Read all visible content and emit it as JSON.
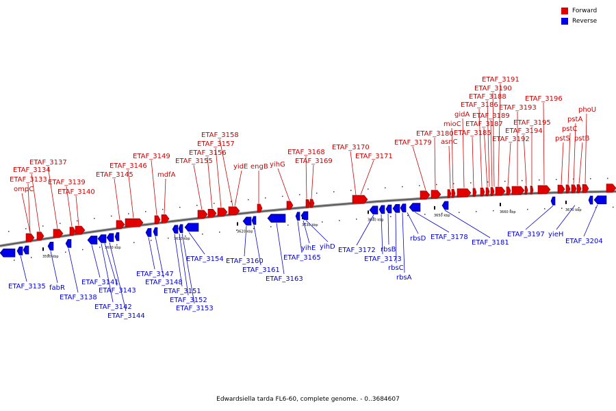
{
  "legend": {
    "forward_label": "Forward",
    "reverse_label": "Reverse",
    "forward_color": "#e00000",
    "reverse_color": "#0000e8"
  },
  "caption": "Edwardsiella tarda FL6-60, complete genome. - 0..3684607",
  "scale_labels": [
    "3590 kbp",
    "3600 kbp",
    "3610 kbp",
    "3620 kbp",
    "3630 kbp",
    "3640 kbp",
    "3650 kbp",
    "3660 kbp",
    "3670 kbp"
  ],
  "forward_genes": [
    "ompC",
    "ETAF_3133",
    "ETAF_3134",
    "ETAF_3137",
    "ETAF_3139",
    "ETAF_3140",
    "ETAF_3145",
    "ETAF_3146",
    "mdfA",
    "ETAF_3149",
    "ETAF_3155",
    "ETAF_3156",
    "ETAF_3157",
    "ETAF_3158",
    "yidE",
    "engB",
    "yihG",
    "ETAF_3168",
    "ETAF_3169",
    "ETAF_3170",
    "ETAF_3171",
    "ETAF_3179",
    "ETAF_3180",
    "asnC",
    "mioC",
    "gidA",
    "ETAF_3185",
    "ETAF_3186",
    "ETAF_3187",
    "ETAF_3188",
    "ETAF_3189",
    "ETAF_3190",
    "ETAF_3191",
    "ETAF_3192",
    "ETAF_3193",
    "ETAF_3194",
    "ETAF_3195",
    "ETAF_3196",
    "pstS",
    "pstC",
    "pstA",
    "pstB",
    "phoU"
  ],
  "reverse_genes": [
    "ETAF_3135",
    "fabR",
    "ETAF_3138",
    "ETAF_3141",
    "ETAF_3142",
    "ETAF_3143",
    "ETAF_3144",
    "ETAF_3147",
    "ETAF_3148",
    "ETAF_3151",
    "ETAF_3152",
    "ETAF_3153",
    "ETAF_3154",
    "ETAF_3160",
    "ETAF_3161",
    "ETAF_3163",
    "ETAF_3165",
    "yihE",
    "yihD",
    "ETAF_3172",
    "ETAF_3173",
    "rbsB",
    "rbsC",
    "rbsA",
    "rbsD",
    "ETAF_3178",
    "ETAF_3181",
    "ETAF_3197",
    "yieH",
    "ETAF_3204"
  ]
}
